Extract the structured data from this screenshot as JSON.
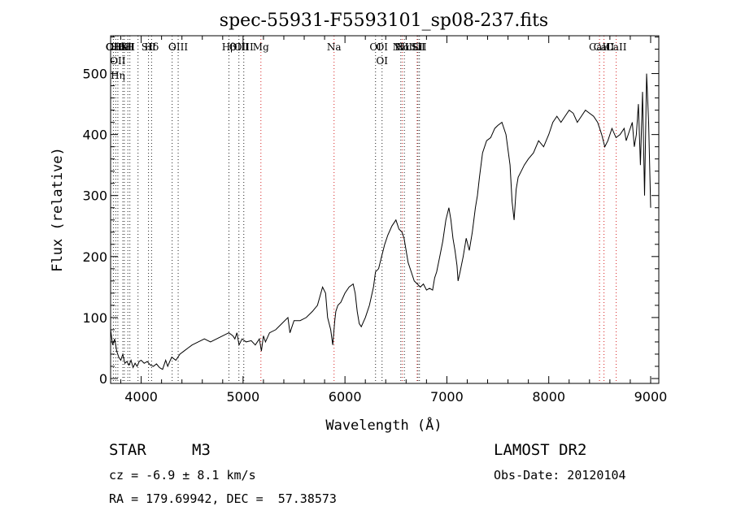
{
  "chart_data": {
    "type": "line",
    "title": "spec-55931-F5593101_sp08-237.fits",
    "xlabel": "Wavelength (Å)",
    "ylabel": "Flux (relative)",
    "xlim": [
      3700,
      9080
    ],
    "ylim": [
      -8,
      562
    ],
    "xticks": [
      4000,
      5000,
      6000,
      7000,
      8000,
      9000
    ],
    "yticks": [
      0,
      100,
      200,
      300,
      400,
      500
    ],
    "grid": false,
    "series": [
      {
        "x": [
          3700,
          3720,
          3740,
          3760,
          3780,
          3800,
          3820,
          3840,
          3860,
          3880,
          3900,
          3920,
          3940,
          3960,
          3980,
          4000,
          4030,
          4060,
          4090,
          4120,
          4150,
          4180,
          4210,
          4240,
          4260,
          4280,
          4300,
          4340,
          4380,
          4420,
          4460,
          4500,
          4560,
          4620,
          4680,
          4740,
          4800,
          4860,
          4900,
          4920,
          4940,
          4960,
          4990,
          5030,
          5080,
          5120,
          5160,
          5180,
          5200,
          5220,
          5260,
          5320,
          5380,
          5440,
          5460,
          5500,
          5560,
          5620,
          5680,
          5730,
          5780,
          5810,
          5830,
          5860,
          5880,
          5900,
          5910,
          5930,
          5960,
          6000,
          6040,
          6080,
          6100,
          6120,
          6140,
          6160,
          6200,
          6240,
          6280,
          6300,
          6330,
          6360,
          6390,
          6420,
          6460,
          6500,
          6530,
          6560,
          6580,
          6600,
          6620,
          6650,
          6680,
          6710,
          6740,
          6770,
          6800,
          6830,
          6860,
          6880,
          6900,
          6930,
          6960,
          6990,
          7020,
          7040,
          7060,
          7080,
          7100,
          7110,
          7130,
          7160,
          7190,
          7220,
          7250,
          7280,
          7300,
          7320,
          7350,
          7390,
          7430,
          7470,
          7500,
          7540,
          7580,
          7620,
          7640,
          7660,
          7680,
          7700,
          7730,
          7760,
          7800,
          7850,
          7900,
          7950,
          8000,
          8040,
          8080,
          8120,
          8160,
          8200,
          8240,
          8280,
          8320,
          8360,
          8400,
          8440,
          8480,
          8520,
          8550,
          8580,
          8620,
          8660,
          8700,
          8740,
          8760,
          8780,
          8800,
          8820,
          8840,
          8860,
          8880,
          8900,
          8920,
          8940,
          8960,
          8980,
          9000
        ],
        "y": [
          80,
          55,
          65,
          45,
          35,
          30,
          40,
          25,
          28,
          22,
          30,
          18,
          25,
          20,
          28,
          30,
          25,
          28,
          22,
          20,
          24,
          18,
          15,
          30,
          20,
          28,
          35,
          30,
          40,
          45,
          50,
          55,
          60,
          65,
          60,
          65,
          70,
          75,
          70,
          65,
          75,
          55,
          65,
          60,
          62,
          55,
          65,
          45,
          70,
          60,
          75,
          80,
          90,
          100,
          75,
          95,
          95,
          100,
          110,
          120,
          150,
          140,
          100,
          80,
          55,
          95,
          110,
          120,
          125,
          140,
          150,
          155,
          140,
          110,
          90,
          85,
          100,
          120,
          150,
          175,
          180,
          200,
          220,
          235,
          250,
          260,
          245,
          240,
          230,
          210,
          190,
          175,
          160,
          155,
          150,
          155,
          145,
          148,
          145,
          165,
          175,
          200,
          225,
          260,
          280,
          260,
          230,
          210,
          185,
          160,
          175,
          200,
          230,
          210,
          240,
          280,
          300,
          330,
          370,
          390,
          395,
          410,
          415,
          420,
          400,
          350,
          290,
          260,
          310,
          330,
          340,
          350,
          360,
          370,
          390,
          380,
          400,
          420,
          430,
          420,
          430,
          440,
          435,
          420,
          430,
          440,
          435,
          430,
          420,
          400,
          380,
          390,
          410,
          395,
          400,
          410,
          390,
          400,
          410,
          420,
          380,
          400,
          450,
          350,
          470,
          300,
          500,
          420,
          280
        ]
      }
    ],
    "lines": [
      {
        "x": 3727,
        "labels": [
          "OII"
        ],
        "color": "#222222"
      },
      {
        "x": 3750,
        "labels": [
          "OIII"
        ],
        "color": "#222222"
      },
      {
        "x": 3771,
        "labels": [
          "Hθ",
          "OII",
          "Hη"
        ],
        "color": "#222222"
      },
      {
        "x": 3820,
        "labels": [
          "HeI"
        ],
        "color": "#222222"
      },
      {
        "x": 3835,
        "labels": [
          "K"
        ],
        "color": "#222222"
      },
      {
        "x": 3869,
        "labels": [
          "SII"
        ],
        "color": "#222222"
      },
      {
        "x": 3889,
        "labels": [
          "H"
        ],
        "color": "#222222"
      },
      {
        "x": 3969,
        "labels": [],
        "color": "#222222"
      },
      {
        "x": 4072,
        "labels": [
          "SII"
        ],
        "color": "#222222"
      },
      {
        "x": 4102,
        "labels": [
          "Hδ"
        ],
        "color": "#222222"
      },
      {
        "x": 4304,
        "labels": [
          "G"
        ],
        "color": "#222222"
      },
      {
        "x": 4363,
        "labels": [
          "OIII"
        ],
        "color": "#222222"
      },
      {
        "x": 4861,
        "labels": [
          "Hβ"
        ],
        "color": "#222222"
      },
      {
        "x": 4959,
        "labels": [
          "OIII"
        ],
        "color": "#222222"
      },
      {
        "x": 5007,
        "labels": [
          "OIII"
        ],
        "color": "#222222"
      },
      {
        "x": 5175,
        "labels": [
          "Mg"
        ],
        "color": "#d62020"
      },
      {
        "x": 5893,
        "labels": [
          "Na"
        ],
        "color": "#d62020"
      },
      {
        "x": 6300,
        "labels": [
          "OI"
        ],
        "color": "#222222"
      },
      {
        "x": 6364,
        "labels": [
          "OI",
          "OI"
        ],
        "color": "#222222"
      },
      {
        "x": 6548,
        "labels": [
          "NII"
        ],
        "color": "#222222"
      },
      {
        "x": 6563,
        "labels": [
          "Hα"
        ],
        "color": "#d62020"
      },
      {
        "x": 6583,
        "labels": [
          "NII"
        ],
        "color": "#222222"
      },
      {
        "x": 6708,
        "labels": [
          "Li"
        ],
        "color": "#d62020"
      },
      {
        "x": 6716,
        "labels": [
          "SII"
        ],
        "color": "#222222"
      },
      {
        "x": 6731,
        "labels": [
          "SII"
        ],
        "color": "#222222"
      },
      {
        "x": 8498,
        "labels": [
          "CaII"
        ],
        "color": "#d62020"
      },
      {
        "x": 8542,
        "labels": [
          "CaII"
        ],
        "color": "#d62020"
      },
      {
        "x": 8662,
        "labels": [
          "CaII"
        ],
        "color": "#d62020"
      }
    ]
  },
  "info": {
    "object_class": "STAR",
    "subclass": "M3",
    "survey": "LAMOST DR2",
    "cz": "cz = -6.9 ± 8.1 km/s",
    "obs_date": "Obs-Date: 20120104",
    "coords": "RA = 179.69942, DEC =  57.38573"
  }
}
